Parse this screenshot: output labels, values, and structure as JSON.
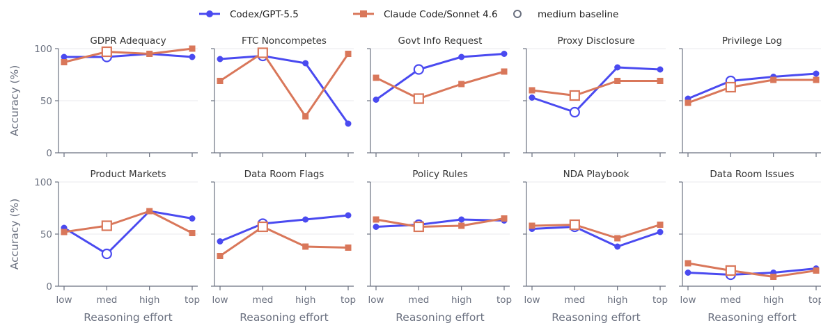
{
  "legend": {
    "codex": "Codex/GPT-5.5",
    "claude": "Claude Code/Sonnet 4.6",
    "baseline": "medium baseline"
  },
  "colors": {
    "codex": "#4a4af0",
    "claude": "#d9775a",
    "axis": "#6b7180",
    "grid": "#e8e9ee"
  },
  "chart_data": {
    "type": "line",
    "x": [
      "low",
      "med",
      "high",
      "top"
    ],
    "xlabel": "Reasoning effort",
    "ylabel": "Accuracy (%)",
    "yticks": [
      0,
      50,
      100
    ],
    "ylim": [
      0,
      100
    ],
    "grid": true,
    "legend_position": "top",
    "baseline_index": 1,
    "panels": [
      {
        "title": "GDPR Adequacy",
        "series": [
          {
            "name": "Codex/GPT-5.5",
            "values": [
              92,
              92,
              95,
              92
            ]
          },
          {
            "name": "Claude Code/Sonnet 4.6",
            "values": [
              87,
              97,
              95,
              100
            ]
          }
        ]
      },
      {
        "title": "FTC Noncompetes",
        "series": [
          {
            "name": "Codex/GPT-5.5",
            "values": [
              90,
              93,
              86,
              28
            ]
          },
          {
            "name": "Claude Code/Sonnet 4.6",
            "values": [
              69,
              96,
              35,
              95
            ]
          }
        ]
      },
      {
        "title": "Govt Info Request",
        "series": [
          {
            "name": "Codex/GPT-5.5",
            "values": [
              51,
              80,
              92,
              95
            ]
          },
          {
            "name": "Claude Code/Sonnet 4.6",
            "values": [
              72,
              52,
              66,
              78
            ]
          }
        ]
      },
      {
        "title": "Proxy Disclosure",
        "series": [
          {
            "name": "Codex/GPT-5.5",
            "values": [
              53,
              39,
              82,
              80
            ]
          },
          {
            "name": "Claude Code/Sonnet 4.6",
            "values": [
              60,
              55,
              69,
              69
            ]
          }
        ]
      },
      {
        "title": "Privilege Log",
        "series": [
          {
            "name": "Codex/GPT-5.5",
            "values": [
              52,
              69,
              73,
              76
            ]
          },
          {
            "name": "Claude Code/Sonnet 4.6",
            "values": [
              48,
              63,
              70,
              70
            ]
          }
        ]
      },
      {
        "title": "Product Markets",
        "series": [
          {
            "name": "Codex/GPT-5.5",
            "values": [
              56,
              31,
              72,
              65
            ]
          },
          {
            "name": "Claude Code/Sonnet 4.6",
            "values": [
              52,
              58,
              72,
              51
            ]
          }
        ]
      },
      {
        "title": "Data Room Flags",
        "series": [
          {
            "name": "Codex/GPT-5.5",
            "values": [
              43,
              60,
              64,
              68
            ]
          },
          {
            "name": "Claude Code/Sonnet 4.6",
            "values": [
              29,
              57,
              38,
              37
            ]
          }
        ]
      },
      {
        "title": "Policy Rules",
        "series": [
          {
            "name": "Codex/GPT-5.5",
            "values": [
              57,
              59,
              64,
              63
            ]
          },
          {
            "name": "Claude Code/Sonnet 4.6",
            "values": [
              64,
              57,
              58,
              65
            ]
          }
        ]
      },
      {
        "title": "NDA Playbook",
        "series": [
          {
            "name": "Codex/GPT-5.5",
            "values": [
              55,
              57,
              38,
              52
            ]
          },
          {
            "name": "Claude Code/Sonnet 4.6",
            "values": [
              58,
              59,
              46,
              59
            ]
          }
        ]
      },
      {
        "title": "Data Room Issues",
        "series": [
          {
            "name": "Codex/GPT-5.5",
            "values": [
              13,
              11,
              13,
              17
            ]
          },
          {
            "name": "Claude Code/Sonnet 4.6",
            "values": [
              22,
              15,
              9,
              15
            ]
          }
        ]
      }
    ]
  }
}
